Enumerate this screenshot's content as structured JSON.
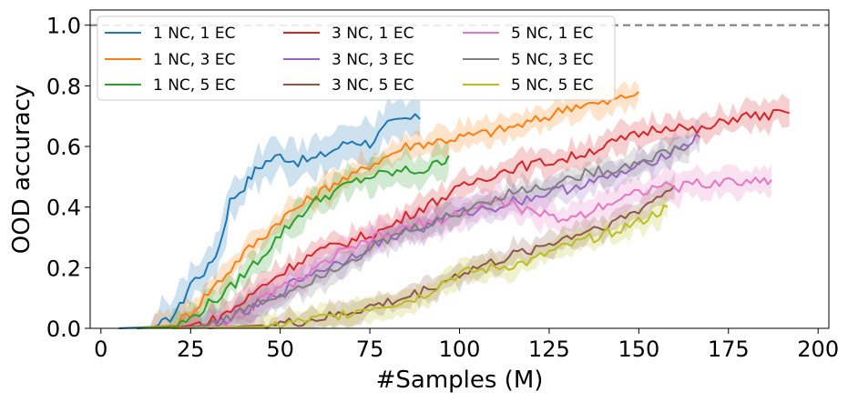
{
  "chart_data": {
    "type": "line",
    "title": "",
    "xlabel": "#Samples (M)",
    "ylabel": "OOD accuracy",
    "xlim": [
      -3,
      203
    ],
    "ylim": [
      0,
      1.05
    ],
    "xticks": [
      0,
      25,
      50,
      75,
      100,
      125,
      150,
      175,
      200
    ],
    "yticks": [
      0.0,
      0.2,
      0.4,
      0.6,
      0.8,
      1.0
    ],
    "xtick_labels": [
      "0",
      "25",
      "50",
      "75",
      "100",
      "125",
      "150",
      "175",
      "200"
    ],
    "ytick_labels": [
      "0.0",
      "0.2",
      "0.4",
      "0.6",
      "0.8",
      "1.0"
    ],
    "reference_line": {
      "y": 1.0,
      "color": "#7f7f7f",
      "style": "dashed"
    },
    "legend": {
      "placement": "top-left",
      "columns": 3
    },
    "series": [
      {
        "name": "1 NC, 1 EC",
        "color": "#1f77b4",
        "points": [
          [
            5,
            0.0
          ],
          [
            15,
            0.005
          ],
          [
            18,
            0.02
          ],
          [
            22,
            0.07
          ],
          [
            25,
            0.15
          ],
          [
            30,
            0.2
          ],
          [
            33,
            0.27
          ],
          [
            36,
            0.42
          ],
          [
            40,
            0.47
          ],
          [
            43,
            0.52
          ],
          [
            46,
            0.55
          ],
          [
            50,
            0.57
          ],
          [
            55,
            0.55
          ],
          [
            60,
            0.56
          ],
          [
            65,
            0.59
          ],
          [
            70,
            0.62
          ],
          [
            75,
            0.61
          ],
          [
            80,
            0.67
          ],
          [
            85,
            0.69
          ],
          [
            89,
            0.69
          ]
        ],
        "band": [
          0.03,
          0.09
        ]
      },
      {
        "name": "1 NC, 3 EC",
        "color": "#ff7f0e",
        "points": [
          [
            10,
            0.0
          ],
          [
            20,
            0.01
          ],
          [
            25,
            0.05
          ],
          [
            30,
            0.12
          ],
          [
            35,
            0.18
          ],
          [
            40,
            0.25
          ],
          [
            45,
            0.3
          ],
          [
            50,
            0.36
          ],
          [
            55,
            0.4
          ],
          [
            60,
            0.44
          ],
          [
            65,
            0.48
          ],
          [
            70,
            0.5
          ],
          [
            75,
            0.54
          ],
          [
            80,
            0.57
          ],
          [
            85,
            0.6
          ],
          [
            90,
            0.61
          ],
          [
            95,
            0.62
          ],
          [
            100,
            0.63
          ],
          [
            110,
            0.65
          ],
          [
            120,
            0.68
          ],
          [
            125,
            0.7
          ],
          [
            130,
            0.73
          ],
          [
            135,
            0.74
          ],
          [
            140,
            0.74
          ],
          [
            145,
            0.76
          ],
          [
            150,
            0.78
          ]
        ],
        "band": [
          0.02,
          0.06
        ]
      },
      {
        "name": "1 NC, 5 EC",
        "color": "#2ca02c",
        "points": [
          [
            10,
            0.0
          ],
          [
            20,
            0.005
          ],
          [
            25,
            0.03
          ],
          [
            30,
            0.08
          ],
          [
            35,
            0.12
          ],
          [
            40,
            0.18
          ],
          [
            45,
            0.24
          ],
          [
            50,
            0.31
          ],
          [
            55,
            0.37
          ],
          [
            60,
            0.42
          ],
          [
            65,
            0.45
          ],
          [
            70,
            0.48
          ],
          [
            75,
            0.5
          ],
          [
            80,
            0.51
          ],
          [
            85,
            0.52
          ],
          [
            90,
            0.52
          ],
          [
            95,
            0.55
          ],
          [
            97,
            0.57
          ]
        ],
        "band": [
          0.02,
          0.07
        ]
      },
      {
        "name": "3 NC, 1 EC",
        "color": "#d62728",
        "points": [
          [
            20,
            0.0
          ],
          [
            30,
            0.02
          ],
          [
            35,
            0.05
          ],
          [
            40,
            0.09
          ],
          [
            45,
            0.14
          ],
          [
            50,
            0.18
          ],
          [
            55,
            0.22
          ],
          [
            60,
            0.25
          ],
          [
            65,
            0.27
          ],
          [
            70,
            0.29
          ],
          [
            75,
            0.31
          ],
          [
            80,
            0.33
          ],
          [
            85,
            0.37
          ],
          [
            90,
            0.4
          ],
          [
            95,
            0.43
          ],
          [
            100,
            0.46
          ],
          [
            105,
            0.49
          ],
          [
            110,
            0.51
          ],
          [
            115,
            0.53
          ],
          [
            120,
            0.54
          ],
          [
            125,
            0.55
          ],
          [
            130,
            0.56
          ],
          [
            135,
            0.58
          ],
          [
            140,
            0.6
          ],
          [
            145,
            0.62
          ],
          [
            150,
            0.64
          ],
          [
            155,
            0.66
          ],
          [
            160,
            0.67
          ],
          [
            165,
            0.65
          ],
          [
            170,
            0.66
          ],
          [
            175,
            0.69
          ],
          [
            180,
            0.7
          ],
          [
            185,
            0.7
          ],
          [
            190,
            0.71
          ],
          [
            192,
            0.71
          ]
        ],
        "band": [
          0.02,
          0.06
        ]
      },
      {
        "name": "3 NC, 3 EC",
        "color": "#9467bd",
        "points": [
          [
            20,
            0.0
          ],
          [
            30,
            0.01
          ],
          [
            35,
            0.03
          ],
          [
            40,
            0.05
          ],
          [
            45,
            0.08
          ],
          [
            50,
            0.12
          ],
          [
            55,
            0.16
          ],
          [
            60,
            0.19
          ],
          [
            65,
            0.21
          ],
          [
            70,
            0.24
          ],
          [
            75,
            0.27
          ],
          [
            80,
            0.3
          ],
          [
            85,
            0.32
          ],
          [
            90,
            0.33
          ],
          [
            95,
            0.36
          ],
          [
            100,
            0.38
          ],
          [
            105,
            0.39
          ],
          [
            110,
            0.4
          ],
          [
            115,
            0.42
          ],
          [
            120,
            0.43
          ],
          [
            125,
            0.45
          ],
          [
            130,
            0.46
          ],
          [
            135,
            0.48
          ],
          [
            140,
            0.49
          ],
          [
            145,
            0.51
          ],
          [
            150,
            0.53
          ],
          [
            155,
            0.56
          ],
          [
            160,
            0.59
          ],
          [
            165,
            0.62
          ],
          [
            167,
            0.63
          ]
        ],
        "band": [
          0.02,
          0.06
        ]
      },
      {
        "name": "3 NC, 5 EC",
        "color": "#8c564b",
        "points": [
          [
            30,
            0.0
          ],
          [
            45,
            0.01
          ],
          [
            55,
            0.02
          ],
          [
            65,
            0.04
          ],
          [
            75,
            0.07
          ],
          [
            85,
            0.1
          ],
          [
            95,
            0.15
          ],
          [
            100,
            0.18
          ],
          [
            105,
            0.2
          ],
          [
            110,
            0.22
          ],
          [
            115,
            0.24
          ],
          [
            120,
            0.26
          ],
          [
            125,
            0.28
          ],
          [
            130,
            0.3
          ],
          [
            135,
            0.32
          ],
          [
            140,
            0.34
          ],
          [
            145,
            0.36
          ],
          [
            150,
            0.39
          ],
          [
            155,
            0.43
          ],
          [
            160,
            0.47
          ]
        ],
        "band": [
          0.02,
          0.05
        ]
      },
      {
        "name": "5 NC, 1 EC",
        "color": "#e377c2",
        "points": [
          [
            30,
            0.0
          ],
          [
            40,
            0.05
          ],
          [
            45,
            0.1
          ],
          [
            50,
            0.13
          ],
          [
            55,
            0.16
          ],
          [
            60,
            0.19
          ],
          [
            65,
            0.24
          ],
          [
            70,
            0.26
          ],
          [
            75,
            0.29
          ],
          [
            80,
            0.31
          ],
          [
            85,
            0.33
          ],
          [
            90,
            0.35
          ],
          [
            95,
            0.36
          ],
          [
            100,
            0.38
          ],
          [
            105,
            0.4
          ],
          [
            110,
            0.42
          ],
          [
            115,
            0.41
          ],
          [
            120,
            0.38
          ],
          [
            125,
            0.37
          ],
          [
            130,
            0.36
          ],
          [
            135,
            0.38
          ],
          [
            140,
            0.41
          ],
          [
            145,
            0.43
          ],
          [
            150,
            0.45
          ],
          [
            155,
            0.47
          ],
          [
            160,
            0.46
          ],
          [
            165,
            0.48
          ],
          [
            170,
            0.47
          ],
          [
            175,
            0.49
          ],
          [
            180,
            0.48
          ],
          [
            185,
            0.49
          ],
          [
            187,
            0.49
          ]
        ],
        "band": [
          0.03,
          0.06
        ]
      },
      {
        "name": "5 NC, 3 EC",
        "color": "#7f7f7f",
        "points": [
          [
            25,
            0.0
          ],
          [
            35,
            0.03
          ],
          [
            40,
            0.06
          ],
          [
            45,
            0.09
          ],
          [
            50,
            0.11
          ],
          [
            55,
            0.14
          ],
          [
            60,
            0.17
          ],
          [
            65,
            0.2
          ],
          [
            70,
            0.23
          ],
          [
            75,
            0.26
          ],
          [
            80,
            0.29
          ],
          [
            85,
            0.32
          ],
          [
            90,
            0.34
          ],
          [
            95,
            0.36
          ],
          [
            100,
            0.38
          ],
          [
            105,
            0.41
          ],
          [
            110,
            0.43
          ],
          [
            115,
            0.45
          ],
          [
            120,
            0.46
          ],
          [
            125,
            0.47
          ],
          [
            130,
            0.49
          ],
          [
            135,
            0.51
          ],
          [
            140,
            0.52
          ],
          [
            145,
            0.53
          ],
          [
            150,
            0.55
          ],
          [
            155,
            0.57
          ],
          [
            160,
            0.59
          ],
          [
            164,
            0.6
          ]
        ],
        "band": [
          0.02,
          0.06
        ]
      },
      {
        "name": "5 NC, 5 EC",
        "color": "#bcbd22",
        "points": [
          [
            20,
            0.0
          ],
          [
            45,
            0.005
          ],
          [
            55,
            0.02
          ],
          [
            65,
            0.04
          ],
          [
            75,
            0.07
          ],
          [
            85,
            0.09
          ],
          [
            90,
            0.11
          ],
          [
            95,
            0.15
          ],
          [
            100,
            0.18
          ],
          [
            105,
            0.19
          ],
          [
            110,
            0.2
          ],
          [
            115,
            0.21
          ],
          [
            120,
            0.22
          ],
          [
            125,
            0.25
          ],
          [
            130,
            0.27
          ],
          [
            135,
            0.29
          ],
          [
            140,
            0.31
          ],
          [
            145,
            0.33
          ],
          [
            150,
            0.35
          ],
          [
            155,
            0.38
          ],
          [
            158,
            0.4
          ]
        ],
        "band": [
          0.02,
          0.05
        ]
      }
    ]
  }
}
